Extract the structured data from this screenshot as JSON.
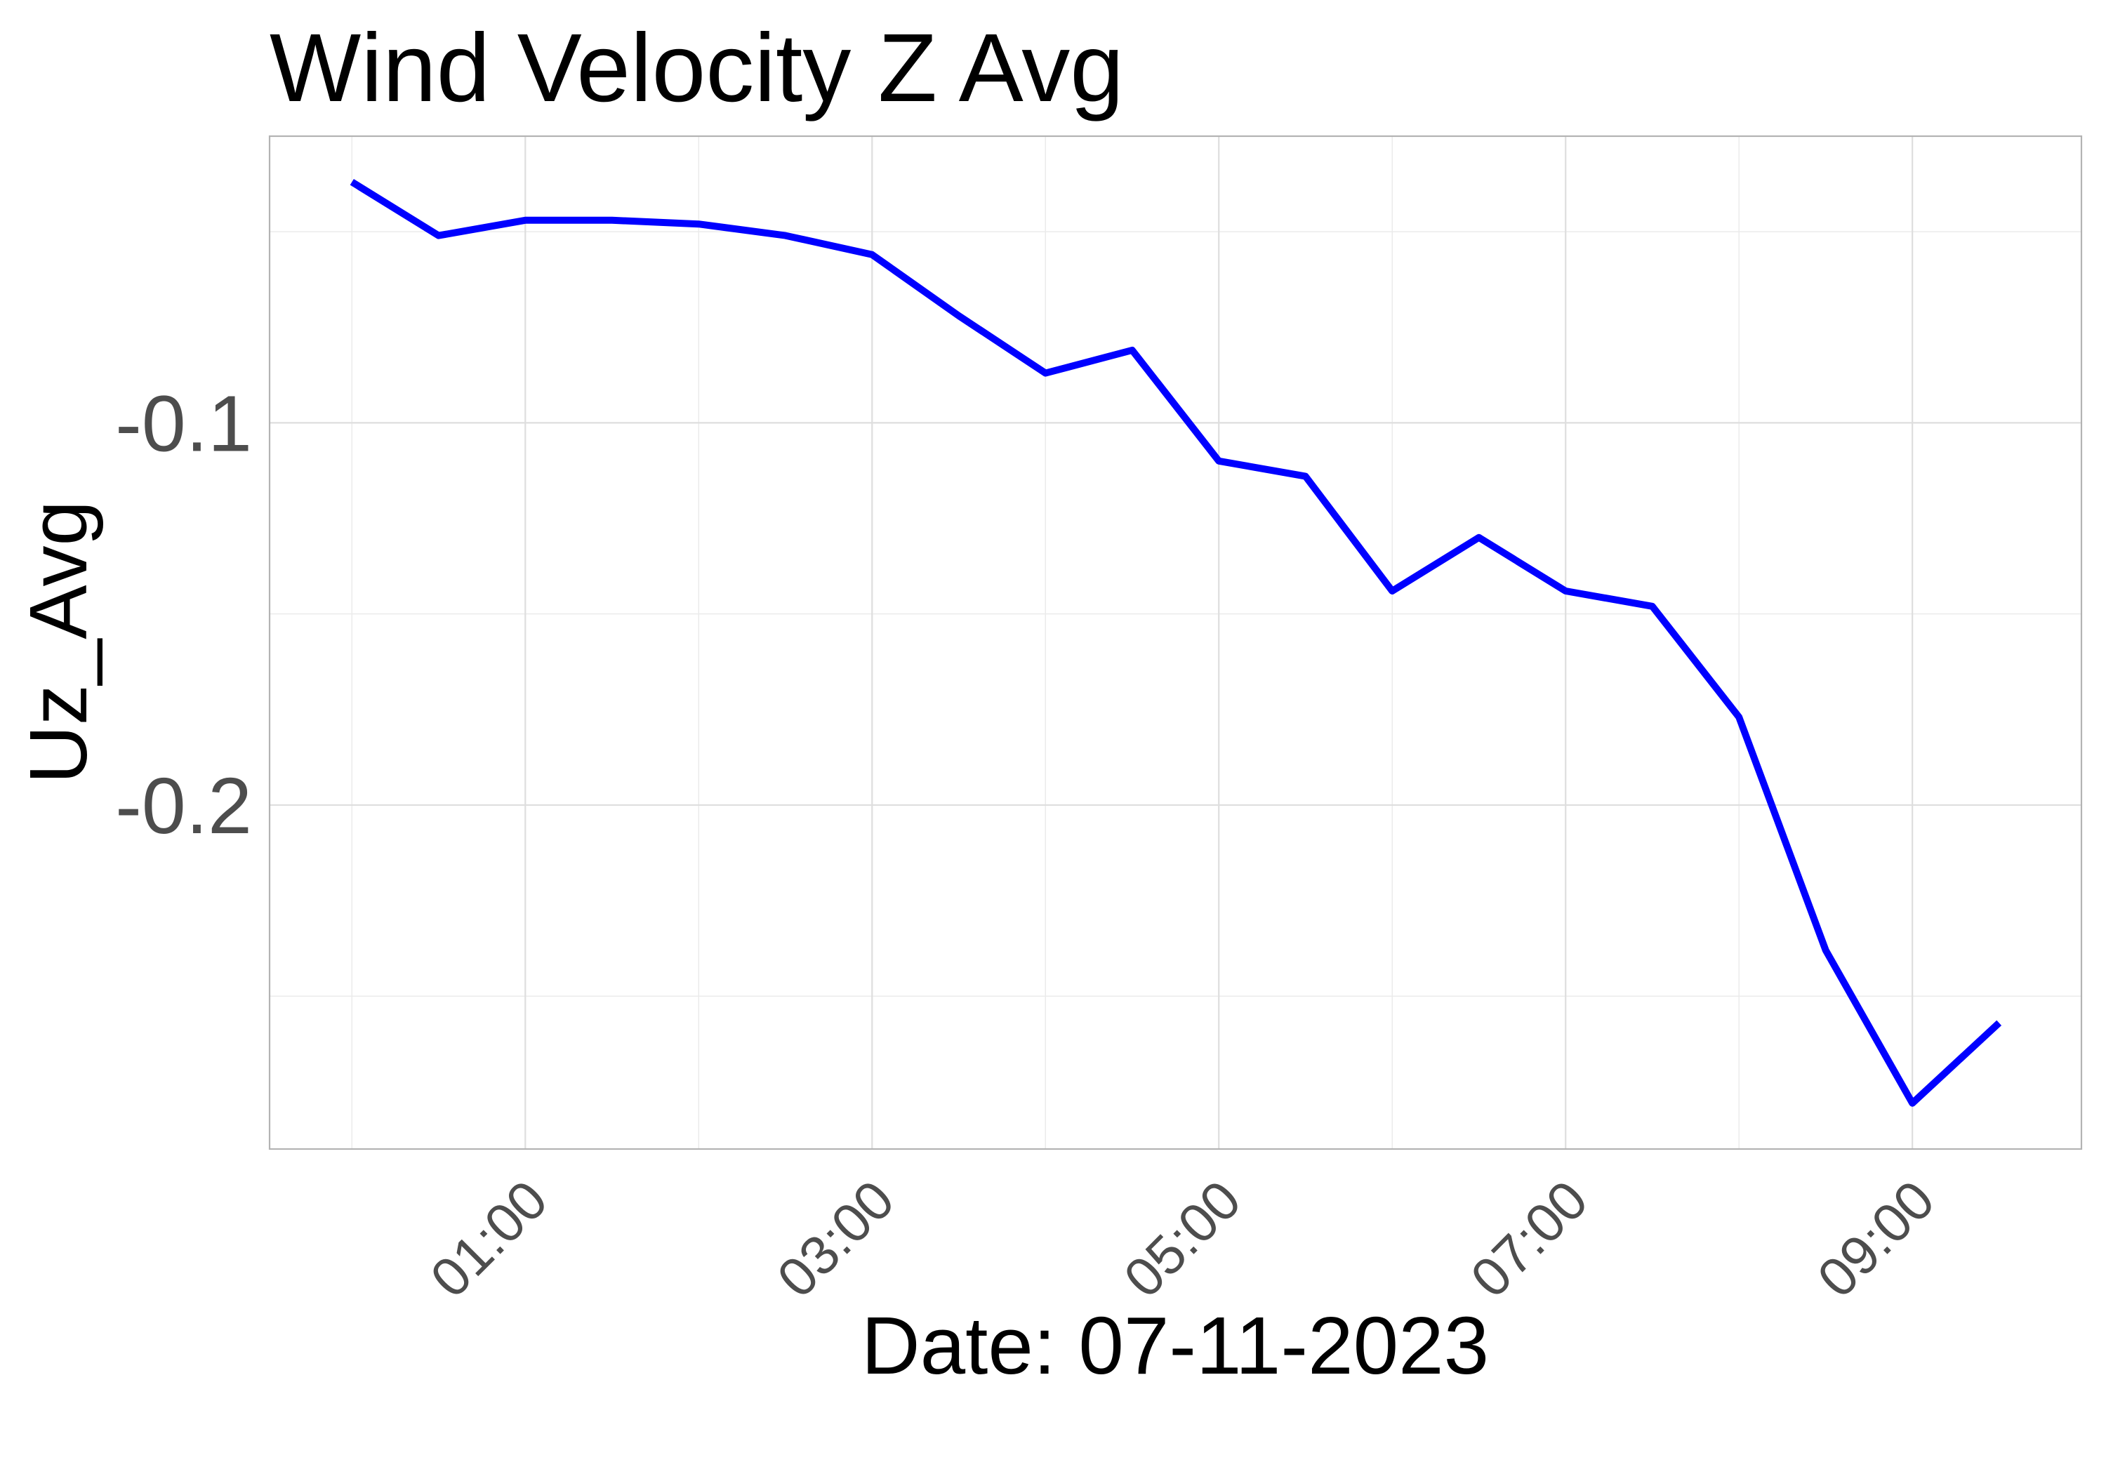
{
  "chart_data": {
    "type": "line",
    "title": "Wind Velocity Z Avg",
    "xlabel": "Date: 07-11-2023",
    "ylabel": "Uz_Avg",
    "x": [
      "00:00",
      "00:30",
      "01:00",
      "01:30",
      "02:00",
      "02:30",
      "03:00",
      "03:30",
      "04:00",
      "04:30",
      "05:00",
      "05:30",
      "06:00",
      "06:30",
      "07:00",
      "07:30",
      "08:00",
      "08:30",
      "09:00",
      "09:30"
    ],
    "series": [
      {
        "values": [
          -0.037,
          -0.051,
          -0.047,
          -0.047,
          -0.048,
          -0.051,
          -0.056,
          -0.072,
          -0.087,
          -0.081,
          -0.11,
          -0.114,
          -0.144,
          -0.13,
          -0.144,
          -0.148,
          -0.177,
          -0.238,
          -0.278,
          -0.257
        ],
        "color": "#0000FF"
      }
    ],
    "x_ticks": [
      "01:00",
      "03:00",
      "05:00",
      "07:00",
      "09:00"
    ],
    "y_ticks": [
      "-0.1",
      "-0.2"
    ],
    "ylim": [
      -0.29,
      -0.025
    ],
    "grid": true,
    "legend": "none"
  }
}
